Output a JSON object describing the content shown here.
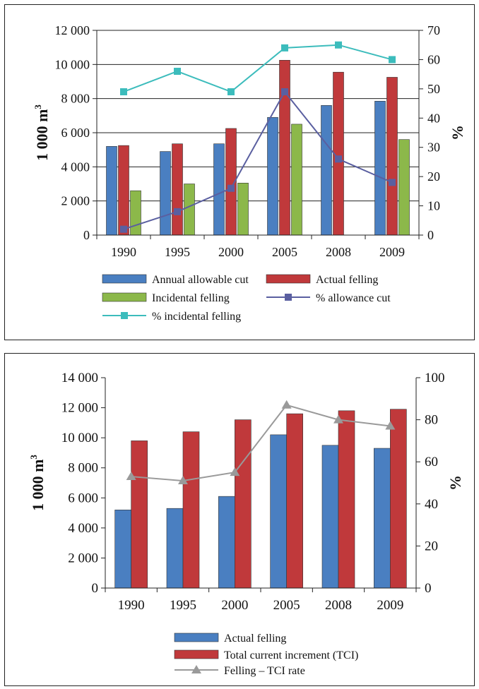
{
  "chart_data": [
    {
      "type": "bar",
      "categories": [
        "1990",
        "1995",
        "2000",
        "2005",
        "2008",
        "2009"
      ],
      "ylabel": "1 000 m",
      "ylabel_sup": "3",
      "y2label": "%",
      "ylim": [
        0,
        12000
      ],
      "y2lim": [
        0,
        70
      ],
      "yticks": [
        "0",
        "2 000",
        "4 000",
        "6 000",
        "8 000",
        "10 000",
        "12 000"
      ],
      "y2ticks": [
        "0",
        "10",
        "20",
        "30",
        "40",
        "50",
        "60",
        "70"
      ],
      "grid": true,
      "legend_position": "bottom",
      "series": [
        {
          "name": "Annual allowable cut",
          "kind": "bar",
          "axis": "left",
          "color": "#4a7fc1",
          "values": [
            5200,
            4900,
            5350,
            6900,
            7600,
            7850
          ]
        },
        {
          "name": "Actual felling",
          "kind": "bar",
          "axis": "left",
          "color": "#c0393b",
          "values": [
            5250,
            5350,
            6250,
            10250,
            9550,
            9250
          ]
        },
        {
          "name": "Incidental felling",
          "kind": "bar",
          "axis": "left",
          "color": "#8cb84a",
          "values": [
            2600,
            3000,
            3050,
            6500,
            null,
            5600
          ]
        },
        {
          "name": "% allowance cut",
          "kind": "line",
          "axis": "right",
          "color": "#5a5fa0",
          "marker": "square",
          "values": [
            2,
            8,
            16,
            49,
            26,
            18
          ]
        },
        {
          "name": "% incidental felling",
          "kind": "line",
          "axis": "right",
          "color": "#3cbcbc",
          "marker": "square",
          "values": [
            49,
            56,
            49,
            64,
            65,
            60
          ]
        }
      ]
    },
    {
      "type": "bar",
      "categories": [
        "1990",
        "1995",
        "2000",
        "2005",
        "2008",
        "2009"
      ],
      "ylabel": "1 000 m",
      "ylabel_sup": "3",
      "y2label": "%",
      "ylim": [
        0,
        14000
      ],
      "y2lim": [
        0,
        100
      ],
      "yticks": [
        "0",
        "2 000",
        "4 000",
        "6 000",
        "8 000",
        "10 000",
        "12 000",
        "14 000"
      ],
      "y2ticks": [
        "0",
        "20",
        "40",
        "60",
        "80",
        "100"
      ],
      "grid": false,
      "legend_position": "bottom",
      "series": [
        {
          "name": "Actual felling",
          "kind": "bar",
          "axis": "left",
          "color": "#4a7fc1",
          "values": [
            5200,
            5300,
            6100,
            10200,
            9500,
            9300
          ]
        },
        {
          "name": "Total current increment (TCI)",
          "kind": "bar",
          "axis": "left",
          "color": "#c0393b",
          "values": [
            9800,
            10400,
            11200,
            11600,
            11800,
            11900
          ]
        },
        {
          "name": "Felling – TCI rate",
          "kind": "line",
          "axis": "right",
          "color": "#9a9a9a",
          "marker": "triangle",
          "values": [
            53,
            51,
            55,
            87,
            80,
            77
          ]
        }
      ]
    }
  ]
}
